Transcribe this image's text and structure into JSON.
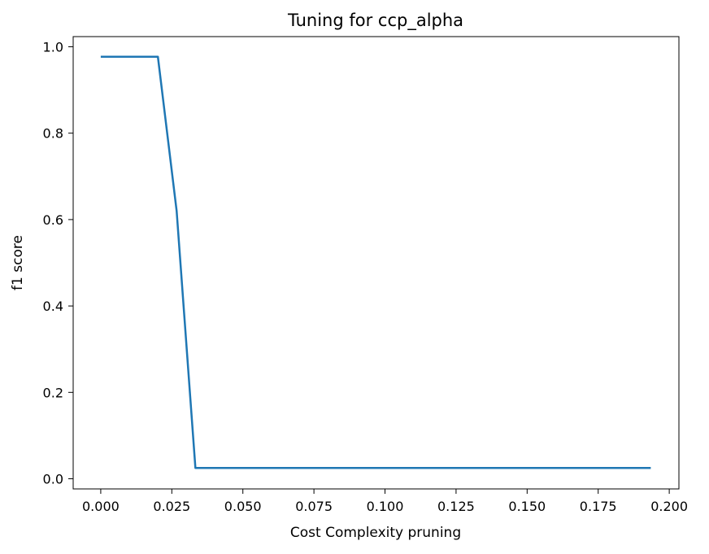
{
  "chart_data": {
    "type": "line",
    "title": "Tuning for ccp_alpha",
    "xlabel": "Cost Complexity pruning",
    "ylabel": "f1 score",
    "xlim": [
      -0.0097,
      0.2034
    ],
    "ylim": [
      -0.0235,
      1.0235
    ],
    "grid": false,
    "xticks": [
      {
        "value": 0.0,
        "label": "0.000"
      },
      {
        "value": 0.025,
        "label": "0.025"
      },
      {
        "value": 0.05,
        "label": "0.050"
      },
      {
        "value": 0.075,
        "label": "0.075"
      },
      {
        "value": 0.1,
        "label": "0.100"
      },
      {
        "value": 0.125,
        "label": "0.125"
      },
      {
        "value": 0.15,
        "label": "0.150"
      },
      {
        "value": 0.175,
        "label": "0.175"
      },
      {
        "value": 0.2,
        "label": "0.200"
      }
    ],
    "yticks": [
      {
        "value": 0.0,
        "label": "0.0"
      },
      {
        "value": 0.2,
        "label": "0.2"
      },
      {
        "value": 0.4,
        "label": "0.4"
      },
      {
        "value": 0.6,
        "label": "0.6"
      },
      {
        "value": 0.8,
        "label": "0.8"
      },
      {
        "value": 1.0,
        "label": "1.0"
      }
    ],
    "series": [
      {
        "color": "#1f77b4",
        "x": [
          0.0,
          0.0201,
          0.0267,
          0.0333,
          0.1935
        ],
        "y": [
          0.977,
          0.977,
          0.62,
          0.025,
          0.025
        ]
      }
    ]
  }
}
